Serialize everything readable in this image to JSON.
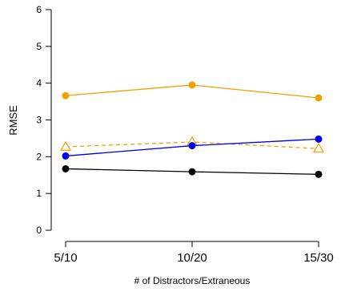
{
  "chart_data": {
    "type": "line",
    "title": "",
    "xlabel": "# of Distractors/Extraneous",
    "ylabel": "RMSE",
    "categories": [
      "5/10",
      "10/20",
      "15/30"
    ],
    "ylim": [
      0,
      6
    ],
    "yticks": [
      0,
      1,
      2,
      3,
      4,
      5,
      6
    ],
    "grid": false,
    "series": [
      {
        "color": "#f5a000",
        "marker": "circle-filled",
        "line": "solid",
        "values": [
          3.66,
          3.95,
          3.6
        ]
      },
      {
        "color": "#f5a000",
        "marker": "triangle-open",
        "line": "dashed",
        "values": [
          2.27,
          2.4,
          2.22
        ]
      },
      {
        "color": "#0000e6",
        "marker": "circle-filled",
        "line": "solid",
        "values": [
          2.02,
          2.3,
          2.48
        ]
      },
      {
        "color": "#000000",
        "marker": "circle-filled",
        "line": "solid",
        "values": [
          1.67,
          1.59,
          1.52
        ]
      }
    ]
  }
}
